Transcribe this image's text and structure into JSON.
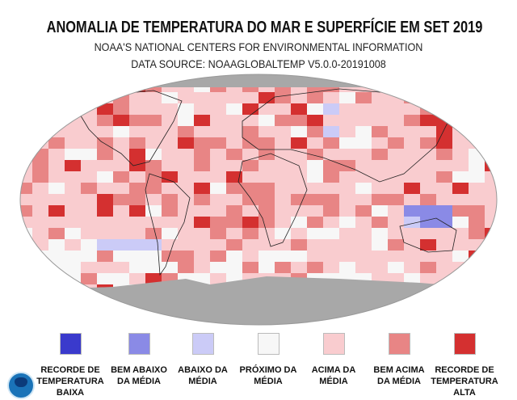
{
  "title": "ANOMALIA DE TEMPERATURA DO MAR E SUPERFÍCIE EM SET 2019",
  "subtitle": "NOAA'S NATIONAL CENTERS FOR ENVIRONMENTAL INFORMATION",
  "source": "DATA SOURCE: NOAAGLOBALTEMP V5.0.0-20191008",
  "legend": [
    {
      "label": "RECORDE DE TEMPERATURA BAIXA",
      "color": "#3a3acc"
    },
    {
      "label": "BEM ABAIXO DA MÉDIA",
      "color": "#8a8ae6"
    },
    {
      "label": "ABAIXO DA MÉDIA",
      "color": "#cbcbf7"
    },
    {
      "label": "PRÓXIMO DA MÉDIA",
      "color": "#f7f7f7"
    },
    {
      "label": "ACIMA DA MÉDIA",
      "color": "#f9cccf"
    },
    {
      "label": "BEM ACIMA DA MÉDIA",
      "color": "#e88585"
    },
    {
      "label": "RECORDE DE TEMPERATURA ALTA",
      "color": "#d43030"
    }
  ],
  "no_data_color": "#a8a8a8",
  "logo": "NOAA"
}
